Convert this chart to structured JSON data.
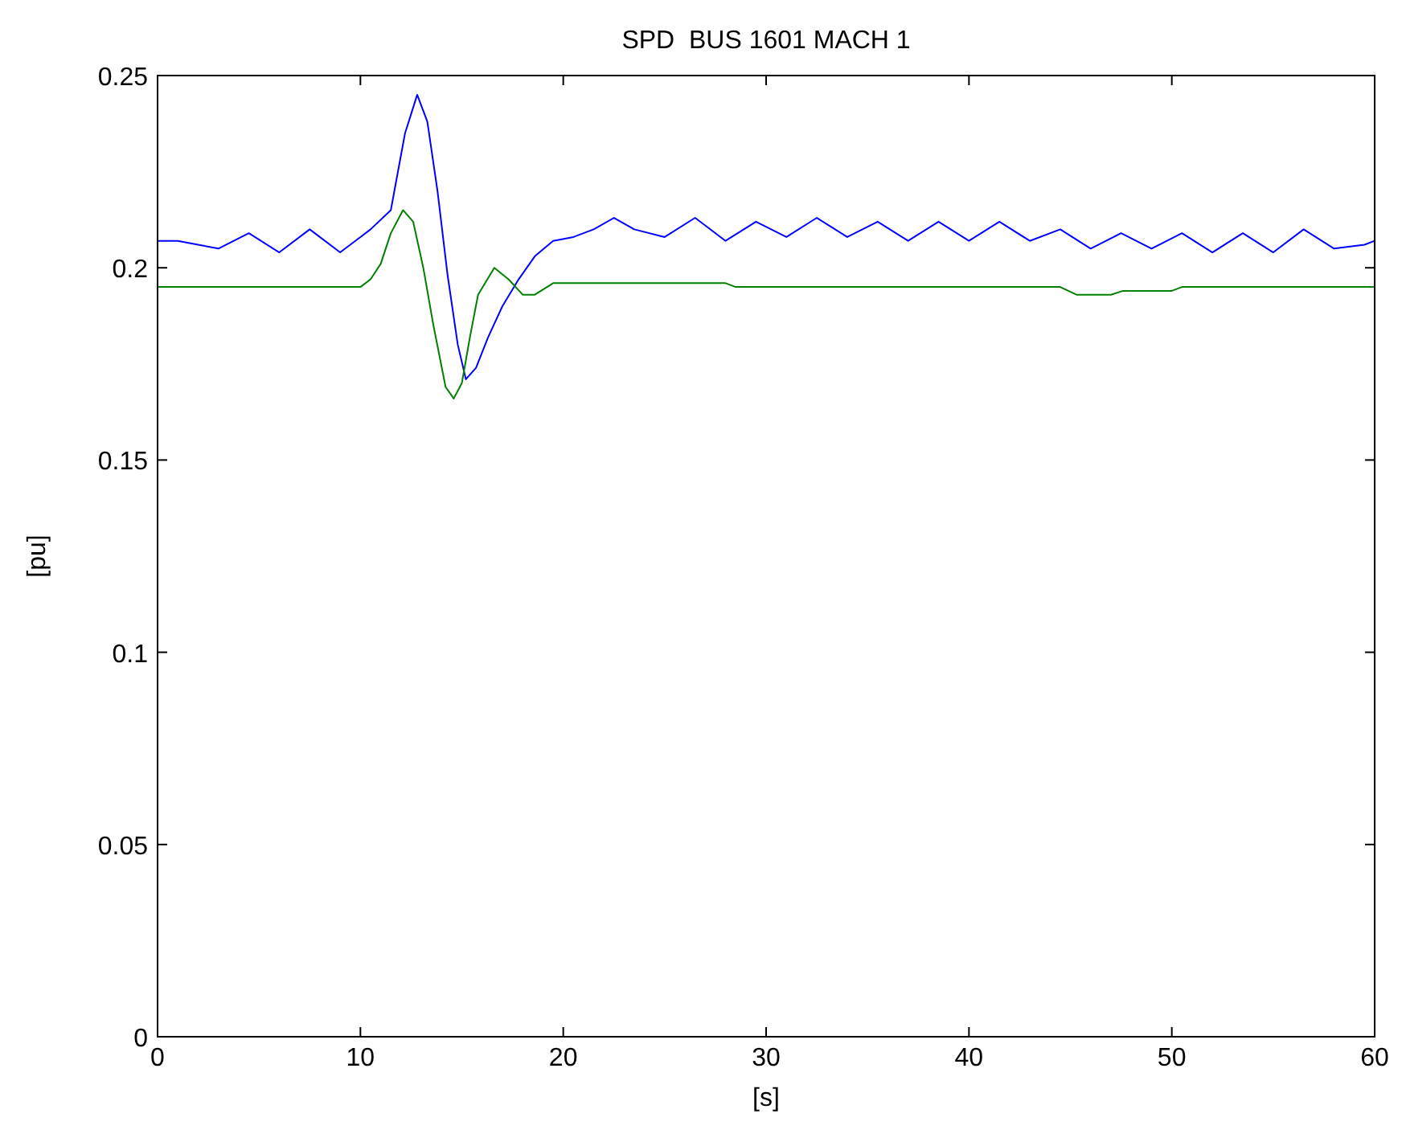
{
  "chart_data": {
    "type": "line",
    "title": "SPD  BUS 1601 MACH 1",
    "xlabel": "[s]",
    "ylabel": "[pu]",
    "xlim": [
      0,
      60
    ],
    "xticks": [
      0,
      10,
      20,
      30,
      40,
      50,
      60
    ],
    "ylim": [
      0,
      0.25
    ],
    "yticks": [
      0,
      0.05,
      0.1,
      0.15,
      0.2,
      0.25
    ],
    "grid": false,
    "series": [
      {
        "color": "#0000ff",
        "x": [
          0,
          1,
          2,
          3,
          4.5,
          6,
          7.5,
          9,
          10,
          10.5,
          11.5,
          12.2,
          12.8,
          13.3,
          13.8,
          14.3,
          14.8,
          15.2,
          15.7,
          16.3,
          17,
          17.8,
          18.6,
          19.5,
          20.5,
          21.5,
          22.5,
          23.5,
          25,
          26.5,
          28,
          29.5,
          31,
          32.5,
          34,
          35.5,
          37,
          38.5,
          40,
          41.5,
          43,
          44.5,
          46,
          47.5,
          49,
          50.5,
          52,
          53.5,
          55,
          56.5,
          58,
          59.5,
          60
        ],
        "values": [
          0.207,
          0.207,
          0.206,
          0.205,
          0.209,
          0.204,
          0.21,
          0.204,
          0.208,
          0.21,
          0.215,
          0.235,
          0.245,
          0.238,
          0.22,
          0.198,
          0.18,
          0.171,
          0.174,
          0.182,
          0.19,
          0.197,
          0.203,
          0.207,
          0.208,
          0.21,
          0.213,
          0.21,
          0.208,
          0.213,
          0.207,
          0.212,
          0.208,
          0.213,
          0.208,
          0.212,
          0.207,
          0.212,
          0.207,
          0.212,
          0.207,
          0.21,
          0.205,
          0.209,
          0.205,
          0.209,
          0.204,
          0.209,
          0.204,
          0.21,
          0.205,
          0.206,
          0.207
        ]
      },
      {
        "color": "#008000",
        "x": [
          0,
          10,
          10.5,
          11,
          11.5,
          12.1,
          12.6,
          13.1,
          13.6,
          14.2,
          14.6,
          15,
          15.4,
          15.8,
          16.6,
          17.3,
          18,
          18.6,
          19.5,
          21,
          28,
          28.5,
          44.5,
          45.3,
          47,
          47.6,
          50,
          50.5,
          60
        ],
        "values": [
          0.195,
          0.195,
          0.197,
          0.201,
          0.209,
          0.215,
          0.212,
          0.2,
          0.185,
          0.169,
          0.166,
          0.17,
          0.182,
          0.193,
          0.2,
          0.197,
          0.193,
          0.193,
          0.196,
          0.196,
          0.196,
          0.195,
          0.195,
          0.193,
          0.193,
          0.194,
          0.194,
          0.195,
          0.195
        ]
      }
    ]
  }
}
